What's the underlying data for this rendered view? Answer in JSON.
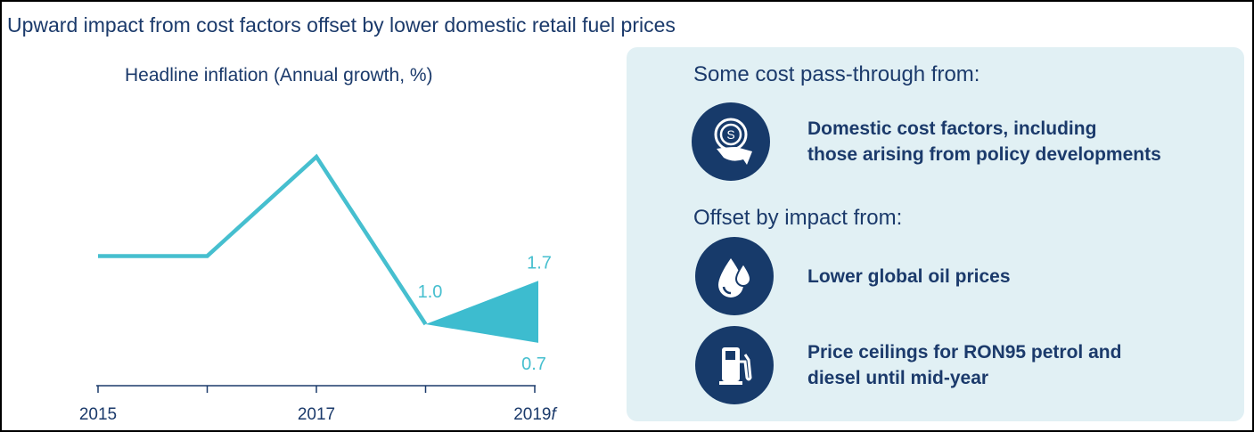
{
  "title": "Upward impact from cost factors offset by lower domestic retail fuel prices",
  "chart_data": {
    "type": "line",
    "title": "Headline inflation (Annual growth, %)",
    "x": [
      2015,
      2016,
      2017,
      2018
    ],
    "tick_labels": [
      "2015",
      "",
      "2017",
      "",
      "2019f"
    ],
    "series": [
      {
        "name": "Headline inflation",
        "values": [
          2.1,
          2.1,
          3.7,
          1.0
        ]
      }
    ],
    "forecast": {
      "x": 2019,
      "from": 1.0,
      "low": 0.7,
      "high": 1.7
    },
    "data_labels": {
      "2018": "1.0",
      "high": "1.7",
      "low": "0.7"
    },
    "ylim": [
      0,
      4.5
    ],
    "color": "#46bfcf"
  },
  "panel": {
    "heading1": "Some cost pass-through from:",
    "heading2": "Offset by impact from:",
    "items": [
      {
        "icon": "money-hand-icon",
        "line1": "Domestic cost factors, including",
        "line2": "those arising from policy developments"
      },
      {
        "icon": "oil-drops-icon",
        "line1": "Lower global oil prices",
        "line2": ""
      },
      {
        "icon": "fuel-pump-icon",
        "line1": "Price ceilings for RON95 petrol and",
        "line2": "diesel until mid-year"
      }
    ]
  }
}
